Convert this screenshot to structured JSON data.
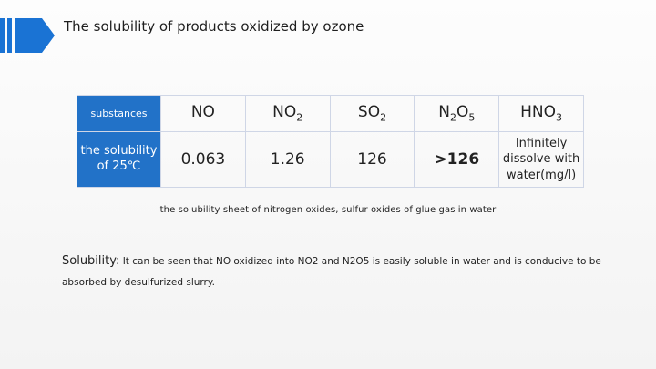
{
  "title": "The solubility of products oxidized by ozone",
  "table": {
    "header_label": "substances",
    "row_label": "the solubility of 25℃",
    "columns": [
      {
        "name": "NO",
        "base": "NO",
        "sub": ""
      },
      {
        "name": "NO2",
        "base": "NO",
        "sub": "2"
      },
      {
        "name": "SO2",
        "base": "SO",
        "sub": "2"
      },
      {
        "name": "N2O5",
        "base": "N",
        "sub": "2",
        "base2": "O",
        "sub2": "5"
      },
      {
        "name": "HNO3",
        "base": "HNO",
        "sub": "3"
      }
    ],
    "values": [
      "0.063",
      "1.26",
      "126",
      ">126",
      "Infinitely dissolve with water(mg/l)"
    ]
  },
  "caption": "the solubility sheet of nitrogen oxides, sulfur oxides of glue gas in water",
  "paragraph": {
    "lead": "Solubility:",
    "text": " It can be seen that NO oxidized into NO2 and N2O5 is easily soluble in water and is conducive to be absorbed by desulfurized slurry."
  },
  "colors": {
    "accent": "#2272c8",
    "deco": "#1a73d4"
  }
}
